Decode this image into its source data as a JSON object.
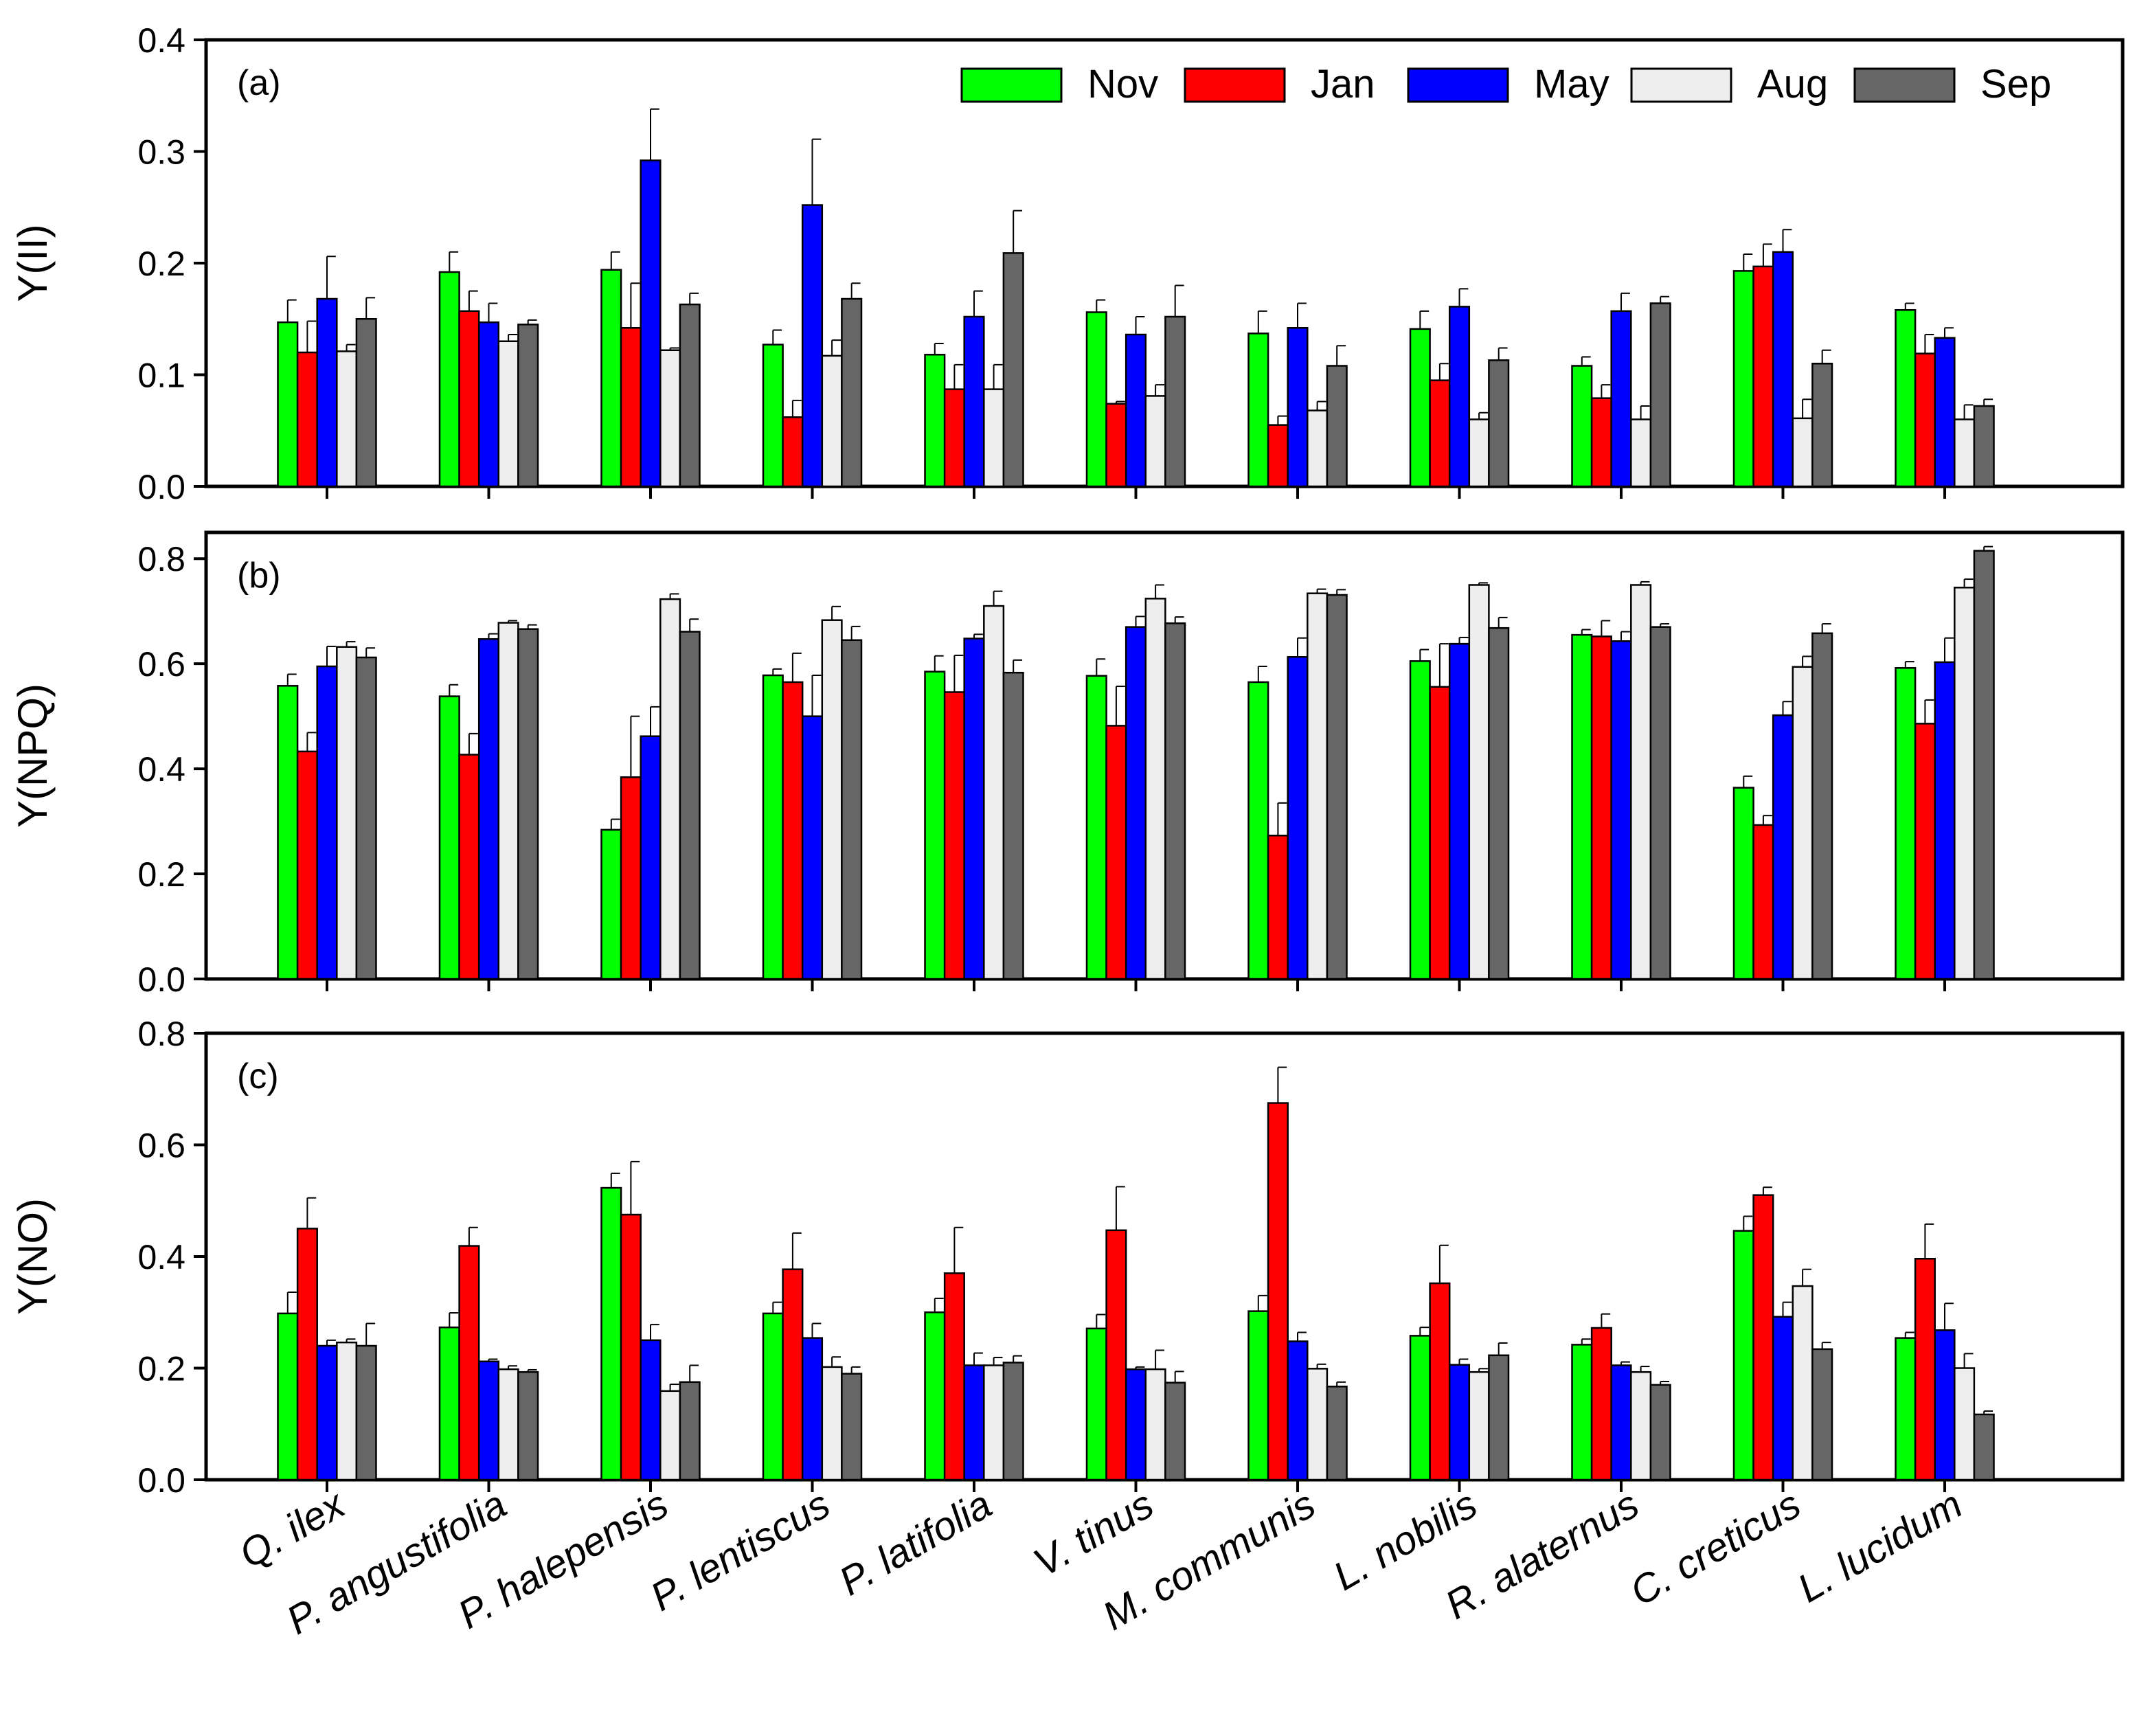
{
  "chart_data": [
    {
      "type": "bar",
      "panel_label": "(a)",
      "ylabel": "Y(II)",
      "ylim": [
        0,
        0.4
      ],
      "yticks": [
        "0.0",
        "0.1",
        "0.2",
        "0.3",
        "0.4"
      ],
      "legend_position": "top-right",
      "categories": [
        "Q. ilex",
        "P. angustifolia",
        "P. halepensis",
        "P. lentiscus",
        "P. latifolia",
        "V. tinus",
        "M. communis",
        "L. nobilis",
        "R. alaternus",
        "C. creticus",
        "L. lucidum"
      ],
      "series": [
        {
          "name": "Nov",
          "color": "#00ff00",
          "values": [
            0.147,
            0.192,
            0.194,
            0.127,
            0.118,
            0.156,
            0.137,
            0.141,
            0.108,
            0.193,
            0.158
          ],
          "errors": [
            0.02,
            0.018,
            0.016,
            0.013,
            0.01,
            0.011,
            0.02,
            0.016,
            0.008,
            0.015,
            0.006
          ]
        },
        {
          "name": "Jan",
          "color": "#ff0000",
          "values": [
            0.12,
            0.157,
            0.142,
            0.062,
            0.087,
            0.074,
            0.055,
            0.095,
            0.079,
            0.197,
            0.119
          ],
          "errors": [
            0.028,
            0.018,
            0.04,
            0.015,
            0.022,
            0.002,
            0.008,
            0.015,
            0.012,
            0.02,
            0.017
          ]
        },
        {
          "name": "May",
          "color": "#0000ff",
          "values": [
            0.168,
            0.147,
            0.292,
            0.252,
            0.152,
            0.136,
            0.142,
            0.161,
            0.157,
            0.21,
            0.133
          ],
          "errors": [
            0.038,
            0.017,
            0.046,
            0.059,
            0.023,
            0.016,
            0.022,
            0.016,
            0.016,
            0.02,
            0.009
          ]
        },
        {
          "name": "Aug",
          "color": "#eeeeee",
          "values": [
            0.121,
            0.13,
            0.122,
            0.117,
            0.087,
            0.081,
            0.068,
            0.06,
            0.06,
            0.061,
            0.06
          ],
          "errors": [
            0.006,
            0.006,
            0.002,
            0.014,
            0.022,
            0.01,
            0.008,
            0.006,
            0.012,
            0.017,
            0.013
          ]
        },
        {
          "name": "Sep",
          "color": "#666666",
          "values": [
            0.15,
            0.145,
            0.163,
            0.168,
            0.209,
            0.152,
            0.108,
            0.113,
            0.164,
            0.11,
            0.072
          ],
          "errors": [
            0.019,
            0.004,
            0.01,
            0.014,
            0.038,
            0.028,
            0.018,
            0.011,
            0.006,
            0.012,
            0.006
          ]
        }
      ]
    },
    {
      "type": "bar",
      "panel_label": "(b)",
      "ylabel": "Y(NPQ)",
      "ylim": [
        0,
        0.85
      ],
      "yticks": [
        "0.0",
        "0.2",
        "0.4",
        "0.6",
        "0.8"
      ],
      "categories": [
        "Q. ilex",
        "P. angustifolia",
        "P. halepensis",
        "P. lentiscus",
        "P. latifolia",
        "V. tinus",
        "M. communis",
        "L. nobilis",
        "R. alaternus",
        "C. creticus",
        "L. lucidum"
      ],
      "series": [
        {
          "name": "Nov",
          "color": "#00ff00",
          "values": [
            0.558,
            0.538,
            0.284,
            0.578,
            0.585,
            0.577,
            0.565,
            0.605,
            0.655,
            0.364,
            0.592
          ],
          "errors": [
            0.022,
            0.022,
            0.02,
            0.012,
            0.03,
            0.032,
            0.03,
            0.022,
            0.01,
            0.022,
            0.012
          ]
        },
        {
          "name": "Jan",
          "color": "#ff0000",
          "values": [
            0.433,
            0.427,
            0.384,
            0.565,
            0.546,
            0.482,
            0.273,
            0.556,
            0.652,
            0.293,
            0.486
          ],
          "errors": [
            0.036,
            0.04,
            0.116,
            0.055,
            0.07,
            0.075,
            0.062,
            0.082,
            0.03,
            0.018,
            0.045
          ]
        },
        {
          "name": "May",
          "color": "#0000ff",
          "values": [
            0.595,
            0.647,
            0.462,
            0.5,
            0.648,
            0.67,
            0.613,
            0.638,
            0.643,
            0.502,
            0.603
          ],
          "errors": [
            0.038,
            0.01,
            0.056,
            0.078,
            0.008,
            0.02,
            0.036,
            0.012,
            0.018,
            0.026,
            0.046
          ]
        },
        {
          "name": "Aug",
          "color": "#eeeeee",
          "values": [
            0.632,
            0.678,
            0.723,
            0.683,
            0.71,
            0.724,
            0.734,
            0.75,
            0.75,
            0.594,
            0.745
          ],
          "errors": [
            0.01,
            0.004,
            0.01,
            0.026,
            0.028,
            0.026,
            0.008,
            0.004,
            0.006,
            0.02,
            0.016
          ]
        },
        {
          "name": "Sep",
          "color": "#666666",
          "values": [
            0.612,
            0.666,
            0.661,
            0.645,
            0.583,
            0.677,
            0.731,
            0.668,
            0.67,
            0.658,
            0.815
          ],
          "errors": [
            0.018,
            0.008,
            0.024,
            0.026,
            0.024,
            0.012,
            0.01,
            0.02,
            0.006,
            0.018,
            0.008
          ]
        }
      ]
    },
    {
      "type": "bar",
      "panel_label": "(c)",
      "ylabel": "Y(NO)",
      "ylim": [
        0,
        0.8
      ],
      "yticks": [
        "0.0",
        "0.2",
        "0.4",
        "0.6",
        "0.8"
      ],
      "categories": [
        "Q. ilex",
        "P. angustifolia",
        "P. halepensis",
        "P. lentiscus",
        "P. latifolia",
        "V. tinus",
        "M. communis",
        "L. nobilis",
        "R. alaternus",
        "C. creticus",
        "L. lucidum"
      ],
      "xtick_labels": [
        "Q. ilex",
        "P. angustifolia",
        "P. halepensis",
        "P. lentiscus",
        "P. latifolia",
        "V. tinus",
        "M. communis",
        "L. nobilis",
        "R. alaternus",
        "C. creticus",
        "L. lucidum"
      ],
      "series": [
        {
          "name": "Nov",
          "color": "#00ff00",
          "values": [
            0.298,
            0.273,
            0.523,
            0.298,
            0.3,
            0.271,
            0.302,
            0.258,
            0.242,
            0.446,
            0.254
          ],
          "errors": [
            0.038,
            0.026,
            0.026,
            0.02,
            0.025,
            0.025,
            0.028,
            0.015,
            0.01,
            0.026,
            0.01
          ]
        },
        {
          "name": "Jan",
          "color": "#ff0000",
          "values": [
            0.45,
            0.419,
            0.475,
            0.377,
            0.37,
            0.447,
            0.675,
            0.352,
            0.272,
            0.51,
            0.396
          ],
          "errors": [
            0.055,
            0.033,
            0.095,
            0.065,
            0.082,
            0.078,
            0.064,
            0.068,
            0.025,
            0.014,
            0.062
          ]
        },
        {
          "name": "May",
          "color": "#0000ff",
          "values": [
            0.24,
            0.212,
            0.25,
            0.254,
            0.205,
            0.198,
            0.248,
            0.206,
            0.205,
            0.292,
            0.268
          ],
          "errors": [
            0.01,
            0.004,
            0.028,
            0.026,
            0.022,
            0.004,
            0.016,
            0.01,
            0.006,
            0.026,
            0.048
          ]
        },
        {
          "name": "Aug",
          "color": "#eeeeee",
          "values": [
            0.246,
            0.198,
            0.159,
            0.202,
            0.205,
            0.198,
            0.199,
            0.193,
            0.193,
            0.347,
            0.2
          ],
          "errors": [
            0.006,
            0.006,
            0.012,
            0.018,
            0.014,
            0.034,
            0.008,
            0.006,
            0.01,
            0.03,
            0.026
          ]
        },
        {
          "name": "Sep",
          "color": "#666666",
          "values": [
            0.24,
            0.193,
            0.175,
            0.19,
            0.21,
            0.174,
            0.167,
            0.223,
            0.17,
            0.234,
            0.117
          ],
          "errors": [
            0.04,
            0.004,
            0.03,
            0.012,
            0.012,
            0.02,
            0.008,
            0.022,
            0.006,
            0.012,
            0.006
          ]
        }
      ]
    }
  ]
}
